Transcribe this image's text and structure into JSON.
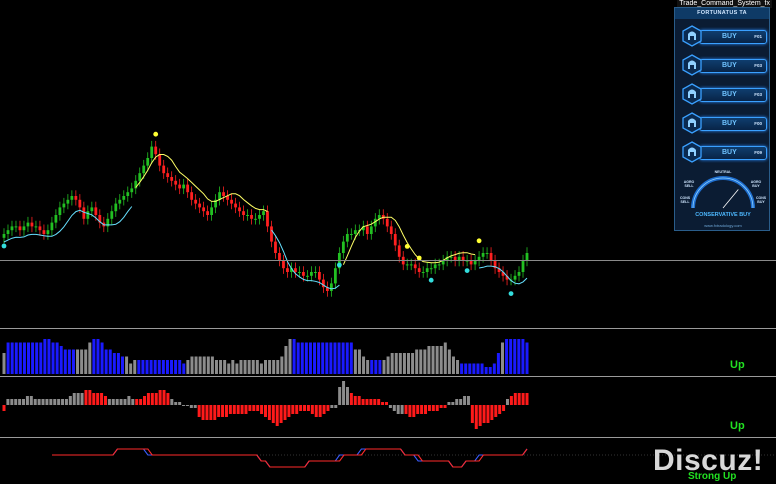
{
  "window": {
    "title": "Trade_Command_System_fx"
  },
  "panel": {
    "title": "FORTUNATUS TA",
    "buttons": [
      {
        "label": "BUY",
        "timeframe": "F01"
      },
      {
        "label": "BUY",
        "timeframe": "F03"
      },
      {
        "label": "BUY",
        "timeframe": "F03"
      },
      {
        "label": "BUY",
        "timeframe": "F00"
      },
      {
        "label": "BUY",
        "timeframe": "F09"
      }
    ],
    "gauge": {
      "labels": {
        "neutral": "NEUTRAL",
        "agro_sell": "AGRO SELL",
        "agro_buy": "AGRO BUY",
        "cons_sell": "CONS SELL",
        "cons_buy": "CONS BUY"
      },
      "verdict": "CONSERVATIVE BUY",
      "site": "www.fxtradology.com",
      "needle_fraction": 0.72
    },
    "colors": {
      "accent": "#3aa0ff",
      "background": "#0b1c33"
    }
  },
  "indicators": {
    "histogram1_state": "Up",
    "histogram2_state": "Up",
    "oscillator_state": "Strong Up"
  },
  "watermark": "Discuz!",
  "chart_data": {
    "type": "candlestick",
    "price_close": [
      50,
      51,
      52,
      52,
      51,
      52,
      53,
      52,
      52,
      51,
      50,
      51,
      53,
      55,
      57,
      58,
      59,
      60,
      59,
      57,
      54,
      56,
      57,
      55,
      53,
      52,
      54,
      56,
      58,
      59,
      60,
      61,
      62,
      64,
      66,
      68,
      70,
      73,
      71,
      68,
      66,
      65,
      64,
      63,
      62,
      63,
      61,
      59,
      58,
      57,
      56,
      55,
      57,
      59,
      61,
      60,
      59,
      58,
      57,
      56,
      55,
      55,
      54,
      54,
      55,
      56,
      52,
      48,
      45,
      43,
      41,
      40,
      41,
      40,
      40,
      39,
      39,
      40,
      40,
      38,
      36,
      35,
      37,
      41,
      45,
      48,
      50,
      50,
      51,
      51,
      52,
      50,
      52,
      54,
      55,
      54,
      52,
      50,
      47,
      44,
      42,
      42,
      42,
      41,
      40,
      40,
      41,
      41,
      42,
      42,
      43,
      44,
      44,
      43,
      44,
      43,
      43,
      42,
      43,
      44,
      45,
      45,
      43,
      41,
      40,
      39,
      38,
      38,
      39,
      40,
      43,
      45
    ],
    "price_colors": {
      "up": "#22c022",
      "down": "#ff2020",
      "signal_line": "#ffff66",
      "trail_line": "#66e0ff",
      "buy_dot": "#33dddd",
      "sell_dot": "#ffff33"
    },
    "histogram1": [
      {
        "v": 6,
        "c": "gray"
      },
      {
        "v": 9,
        "c": "blue"
      },
      {
        "v": 9,
        "c": "blue"
      },
      {
        "v": 9,
        "c": "blue"
      },
      {
        "v": 9,
        "c": "blue"
      },
      {
        "v": 9,
        "c": "blue"
      },
      {
        "v": 9,
        "c": "blue"
      },
      {
        "v": 9,
        "c": "blue"
      },
      {
        "v": 9,
        "c": "blue"
      },
      {
        "v": 9,
        "c": "blue"
      },
      {
        "v": 10,
        "c": "blue"
      },
      {
        "v": 10,
        "c": "blue"
      },
      {
        "v": 9,
        "c": "blue"
      },
      {
        "v": 9,
        "c": "blue"
      },
      {
        "v": 8,
        "c": "blue"
      },
      {
        "v": 7,
        "c": "blue"
      },
      {
        "v": 7,
        "c": "blue"
      },
      {
        "v": 7,
        "c": "blue"
      },
      {
        "v": 7,
        "c": "gray"
      },
      {
        "v": 7,
        "c": "gray"
      },
      {
        "v": 7,
        "c": "gray"
      },
      {
        "v": 9,
        "c": "gray"
      },
      {
        "v": 10,
        "c": "blue"
      },
      {
        "v": 10,
        "c": "blue"
      },
      {
        "v": 9,
        "c": "blue"
      },
      {
        "v": 7,
        "c": "blue"
      },
      {
        "v": 7,
        "c": "blue"
      },
      {
        "v": 6,
        "c": "blue"
      },
      {
        "v": 6,
        "c": "blue"
      },
      {
        "v": 5,
        "c": "blue"
      },
      {
        "v": 5,
        "c": "gray"
      },
      {
        "v": 3,
        "c": "gray"
      },
      {
        "v": 4,
        "c": "gray"
      },
      {
        "v": 4,
        "c": "blue"
      },
      {
        "v": 4,
        "c": "blue"
      },
      {
        "v": 4,
        "c": "blue"
      },
      {
        "v": 4,
        "c": "blue"
      },
      {
        "v": 4,
        "c": "blue"
      },
      {
        "v": 4,
        "c": "blue"
      },
      {
        "v": 4,
        "c": "blue"
      },
      {
        "v": 4,
        "c": "blue"
      },
      {
        "v": 4,
        "c": "blue"
      },
      {
        "v": 4,
        "c": "blue"
      },
      {
        "v": 4,
        "c": "blue"
      },
      {
        "v": 3,
        "c": "blue"
      },
      {
        "v": 4,
        "c": "gray"
      },
      {
        "v": 5,
        "c": "gray"
      },
      {
        "v": 5,
        "c": "gray"
      },
      {
        "v": 5,
        "c": "gray"
      },
      {
        "v": 5,
        "c": "gray"
      },
      {
        "v": 5,
        "c": "gray"
      },
      {
        "v": 5,
        "c": "gray"
      },
      {
        "v": 4,
        "c": "gray"
      },
      {
        "v": 4,
        "c": "gray"
      },
      {
        "v": 4,
        "c": "gray"
      },
      {
        "v": 3,
        "c": "gray"
      },
      {
        "v": 4,
        "c": "gray"
      },
      {
        "v": 3,
        "c": "gray"
      },
      {
        "v": 4,
        "c": "gray"
      },
      {
        "v": 4,
        "c": "gray"
      },
      {
        "v": 4,
        "c": "gray"
      },
      {
        "v": 4,
        "c": "gray"
      },
      {
        "v": 4,
        "c": "gray"
      },
      {
        "v": 3,
        "c": "gray"
      },
      {
        "v": 4,
        "c": "gray"
      },
      {
        "v": 4,
        "c": "gray"
      },
      {
        "v": 4,
        "c": "gray"
      },
      {
        "v": 4,
        "c": "gray"
      },
      {
        "v": 5,
        "c": "gray"
      },
      {
        "v": 8,
        "c": "gray"
      },
      {
        "v": 10,
        "c": "gray"
      },
      {
        "v": 10,
        "c": "blue"
      },
      {
        "v": 9,
        "c": "blue"
      },
      {
        "v": 9,
        "c": "blue"
      },
      {
        "v": 9,
        "c": "blue"
      },
      {
        "v": 9,
        "c": "blue"
      },
      {
        "v": 9,
        "c": "blue"
      },
      {
        "v": 9,
        "c": "blue"
      },
      {
        "v": 9,
        "c": "blue"
      },
      {
        "v": 9,
        "c": "blue"
      },
      {
        "v": 9,
        "c": "blue"
      },
      {
        "v": 9,
        "c": "blue"
      },
      {
        "v": 9,
        "c": "blue"
      },
      {
        "v": 9,
        "c": "blue"
      },
      {
        "v": 9,
        "c": "blue"
      },
      {
        "v": 9,
        "c": "blue"
      },
      {
        "v": 7,
        "c": "gray"
      },
      {
        "v": 7,
        "c": "gray"
      },
      {
        "v": 5,
        "c": "gray"
      },
      {
        "v": 4,
        "c": "gray"
      },
      {
        "v": 4,
        "c": "blue"
      },
      {
        "v": 4,
        "c": "blue"
      },
      {
        "v": 4,
        "c": "blue"
      },
      {
        "v": 4,
        "c": "gray"
      },
      {
        "v": 5,
        "c": "gray"
      },
      {
        "v": 6,
        "c": "gray"
      },
      {
        "v": 6,
        "c": "gray"
      },
      {
        "v": 6,
        "c": "gray"
      },
      {
        "v": 6,
        "c": "gray"
      },
      {
        "v": 6,
        "c": "gray"
      },
      {
        "v": 6,
        "c": "gray"
      },
      {
        "v": 7,
        "c": "gray"
      },
      {
        "v": 7,
        "c": "gray"
      },
      {
        "v": 7,
        "c": "gray"
      },
      {
        "v": 8,
        "c": "gray"
      },
      {
        "v": 8,
        "c": "gray"
      },
      {
        "v": 8,
        "c": "gray"
      },
      {
        "v": 8,
        "c": "gray"
      },
      {
        "v": 9,
        "c": "gray"
      },
      {
        "v": 7,
        "c": "gray"
      },
      {
        "v": 5,
        "c": "gray"
      },
      {
        "v": 4,
        "c": "gray"
      },
      {
        "v": 3,
        "c": "blue"
      },
      {
        "v": 3,
        "c": "blue"
      },
      {
        "v": 3,
        "c": "blue"
      },
      {
        "v": 3,
        "c": "blue"
      },
      {
        "v": 3,
        "c": "blue"
      },
      {
        "v": 3,
        "c": "blue"
      },
      {
        "v": 2,
        "c": "blue"
      },
      {
        "v": 2,
        "c": "blue"
      },
      {
        "v": 3,
        "c": "blue"
      },
      {
        "v": 6,
        "c": "blue"
      },
      {
        "v": 9,
        "c": "gray"
      },
      {
        "v": 10,
        "c": "blue"
      },
      {
        "v": 10,
        "c": "blue"
      },
      {
        "v": 10,
        "c": "blue"
      },
      {
        "v": 10,
        "c": "blue"
      },
      {
        "v": 10,
        "c": "blue"
      },
      {
        "v": 9,
        "c": "blue"
      }
    ],
    "histogram2": [
      {
        "v": -2,
        "c": "red"
      },
      {
        "v": 2,
        "c": "gray"
      },
      {
        "v": 2,
        "c": "gray"
      },
      {
        "v": 2,
        "c": "gray"
      },
      {
        "v": 2,
        "c": "gray"
      },
      {
        "v": 2,
        "c": "gray"
      },
      {
        "v": 3,
        "c": "gray"
      },
      {
        "v": 3,
        "c": "gray"
      },
      {
        "v": 2,
        "c": "gray"
      },
      {
        "v": 2,
        "c": "gray"
      },
      {
        "v": 2,
        "c": "gray"
      },
      {
        "v": 2,
        "c": "gray"
      },
      {
        "v": 2,
        "c": "gray"
      },
      {
        "v": 2,
        "c": "gray"
      },
      {
        "v": 2,
        "c": "gray"
      },
      {
        "v": 2,
        "c": "gray"
      },
      {
        "v": 2,
        "c": "gray"
      },
      {
        "v": 3,
        "c": "gray"
      },
      {
        "v": 4,
        "c": "gray"
      },
      {
        "v": 4,
        "c": "gray"
      },
      {
        "v": 4,
        "c": "gray"
      },
      {
        "v": 5,
        "c": "red"
      },
      {
        "v": 5,
        "c": "red"
      },
      {
        "v": 4,
        "c": "red"
      },
      {
        "v": 4,
        "c": "red"
      },
      {
        "v": 4,
        "c": "red"
      },
      {
        "v": 3,
        "c": "red"
      },
      {
        "v": 2,
        "c": "gray"
      },
      {
        "v": 2,
        "c": "gray"
      },
      {
        "v": 2,
        "c": "gray"
      },
      {
        "v": 2,
        "c": "gray"
      },
      {
        "v": 2,
        "c": "gray"
      },
      {
        "v": 3,
        "c": "gray"
      },
      {
        "v": 2,
        "c": "gray"
      },
      {
        "v": 2,
        "c": "red"
      },
      {
        "v": 2,
        "c": "red"
      },
      {
        "v": 3,
        "c": "red"
      },
      {
        "v": 4,
        "c": "red"
      },
      {
        "v": 4,
        "c": "red"
      },
      {
        "v": 4,
        "c": "red"
      },
      {
        "v": 5,
        "c": "red"
      },
      {
        "v": 5,
        "c": "red"
      },
      {
        "v": 4,
        "c": "red"
      },
      {
        "v": 2,
        "c": "gray"
      },
      {
        "v": 1,
        "c": "gray"
      },
      {
        "v": 1,
        "c": "gray"
      },
      {
        "v": 0,
        "c": "gray"
      },
      {
        "v": 0,
        "c": "gray"
      },
      {
        "v": -1,
        "c": "gray"
      },
      {
        "v": -1,
        "c": "gray"
      },
      {
        "v": -4,
        "c": "red"
      },
      {
        "v": -5,
        "c": "red"
      },
      {
        "v": -5,
        "c": "red"
      },
      {
        "v": -5,
        "c": "red"
      },
      {
        "v": -5,
        "c": "red"
      },
      {
        "v": -4,
        "c": "red"
      },
      {
        "v": -4,
        "c": "red"
      },
      {
        "v": -4,
        "c": "red"
      },
      {
        "v": -3,
        "c": "red"
      },
      {
        "v": -3,
        "c": "red"
      },
      {
        "v": -3,
        "c": "red"
      },
      {
        "v": -3,
        "c": "red"
      },
      {
        "v": -3,
        "c": "red"
      },
      {
        "v": -2,
        "c": "red"
      },
      {
        "v": -2,
        "c": "red"
      },
      {
        "v": -2,
        "c": "red"
      },
      {
        "v": -3,
        "c": "red"
      },
      {
        "v": -4,
        "c": "red"
      },
      {
        "v": -5,
        "c": "red"
      },
      {
        "v": -6,
        "c": "red"
      },
      {
        "v": -7,
        "c": "red"
      },
      {
        "v": -6,
        "c": "red"
      },
      {
        "v": -5,
        "c": "red"
      },
      {
        "v": -4,
        "c": "red"
      },
      {
        "v": -3,
        "c": "red"
      },
      {
        "v": -3,
        "c": "red"
      },
      {
        "v": -2,
        "c": "red"
      },
      {
        "v": -2,
        "c": "red"
      },
      {
        "v": -2,
        "c": "red"
      },
      {
        "v": -3,
        "c": "red"
      },
      {
        "v": -4,
        "c": "red"
      },
      {
        "v": -4,
        "c": "red"
      },
      {
        "v": -3,
        "c": "red"
      },
      {
        "v": -2,
        "c": "red"
      },
      {
        "v": -1,
        "c": "gray"
      },
      {
        "v": -1,
        "c": "gray"
      },
      {
        "v": 6,
        "c": "gray"
      },
      {
        "v": 8,
        "c": "gray"
      },
      {
        "v": 6,
        "c": "gray"
      },
      {
        "v": 4,
        "c": "red"
      },
      {
        "v": 3,
        "c": "red"
      },
      {
        "v": 3,
        "c": "red"
      },
      {
        "v": 2,
        "c": "red"
      },
      {
        "v": 2,
        "c": "red"
      },
      {
        "v": 2,
        "c": "red"
      },
      {
        "v": 2,
        "c": "red"
      },
      {
        "v": 2,
        "c": "red"
      },
      {
        "v": 1,
        "c": "red"
      },
      {
        "v": 1,
        "c": "red"
      },
      {
        "v": -1,
        "c": "gray"
      },
      {
        "v": -2,
        "c": "gray"
      },
      {
        "v": -3,
        "c": "gray"
      },
      {
        "v": -3,
        "c": "gray"
      },
      {
        "v": -3,
        "c": "red"
      },
      {
        "v": -4,
        "c": "red"
      },
      {
        "v": -4,
        "c": "red"
      },
      {
        "v": -3,
        "c": "red"
      },
      {
        "v": -3,
        "c": "red"
      },
      {
        "v": -3,
        "c": "red"
      },
      {
        "v": -2,
        "c": "red"
      },
      {
        "v": -2,
        "c": "red"
      },
      {
        "v": -2,
        "c": "red"
      },
      {
        "v": -1,
        "c": "red"
      },
      {
        "v": -1,
        "c": "red"
      },
      {
        "v": 1,
        "c": "gray"
      },
      {
        "v": 1,
        "c": "gray"
      },
      {
        "v": 2,
        "c": "gray"
      },
      {
        "v": 2,
        "c": "gray"
      },
      {
        "v": 3,
        "c": "gray"
      },
      {
        "v": 3,
        "c": "gray"
      },
      {
        "v": -6,
        "c": "red"
      },
      {
        "v": -8,
        "c": "red"
      },
      {
        "v": -7,
        "c": "red"
      },
      {
        "v": -6,
        "c": "red"
      },
      {
        "v": -6,
        "c": "red"
      },
      {
        "v": -5,
        "c": "red"
      },
      {
        "v": -4,
        "c": "red"
      },
      {
        "v": -3,
        "c": "red"
      },
      {
        "v": -2,
        "c": "red"
      },
      {
        "v": 2,
        "c": "gray"
      },
      {
        "v": 3,
        "c": "red"
      },
      {
        "v": 4,
        "c": "red"
      },
      {
        "v": 4,
        "c": "red"
      },
      {
        "v": 4,
        "c": "red"
      },
      {
        "v": 4,
        "c": "red"
      }
    ],
    "oscillator": {
      "red": [
        0,
        0,
        0,
        0,
        0,
        0,
        0,
        0,
        0,
        0,
        0,
        0,
        0,
        0,
        0,
        1,
        1,
        1,
        1,
        1,
        1,
        1,
        1,
        0,
        0,
        0,
        0,
        0,
        0,
        0,
        0,
        0,
        0,
        0,
        0,
        0,
        0,
        0,
        0,
        0,
        0,
        0,
        0,
        0,
        0,
        0,
        0,
        0,
        -1,
        -1,
        -2,
        -2,
        -2,
        -2,
        -2,
        -2,
        -2,
        -2,
        -2,
        -1,
        -1,
        -1,
        -1,
        -1,
        -1,
        -1,
        -1,
        0,
        0,
        0,
        0,
        0,
        1,
        1,
        1,
        1,
        1,
        1,
        1,
        1,
        1,
        0,
        0,
        0,
        0,
        -1,
        -1,
        -1,
        -1,
        -1,
        -1,
        -1,
        -2,
        -2,
        -2,
        -1,
        -1,
        -1,
        -1,
        0,
        0,
        0,
        0,
        0,
        0,
        0,
        0,
        0,
        0,
        1
      ],
      "blue": [
        0,
        0,
        0,
        0,
        0,
        0,
        0,
        0,
        0,
        0,
        0,
        0,
        0,
        0,
        0,
        1,
        1,
        1,
        1,
        1,
        1,
        1,
        0,
        0,
        0,
        0,
        0,
        0,
        0,
        0,
        0,
        0,
        0,
        0,
        0,
        0,
        0,
        0,
        0,
        0,
        0,
        0,
        0,
        0,
        0,
        0,
        0,
        0,
        -1,
        -1,
        -2,
        -2,
        -2,
        -2,
        -2,
        -2,
        -2,
        -2,
        -2,
        -1,
        -1,
        -1,
        -1,
        -1,
        -1,
        -1,
        0,
        0,
        0,
        0,
        0,
        1,
        1,
        1,
        1,
        1,
        1,
        1,
        1,
        1,
        1,
        0,
        0,
        0,
        -1,
        -1,
        -1,
        -1,
        -1,
        -1,
        -1,
        -1,
        -2,
        -2,
        -2,
        -1,
        -1,
        -1,
        0,
        0,
        0,
        0,
        0,
        0,
        0,
        0,
        0,
        0,
        0,
        1
      ]
    }
  }
}
